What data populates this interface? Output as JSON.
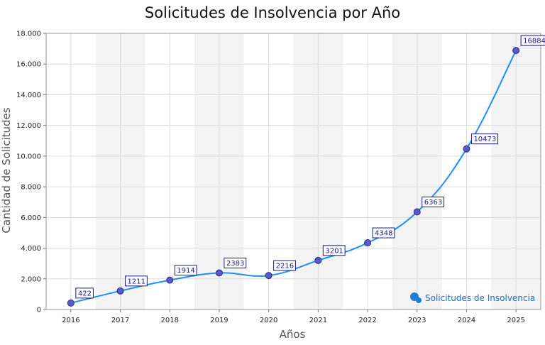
{
  "chart_data": {
    "type": "line",
    "title": "Solicitudes de Insolvencia por Año",
    "xlabel": "Años",
    "ylabel": "Cantidad de Solicitudes",
    "categories": [
      "2016",
      "2017",
      "2018",
      "2019",
      "2020",
      "2021",
      "2022",
      "2023",
      "2024",
      "2025"
    ],
    "series": [
      {
        "name": "Solicitudes de Insolvencia",
        "values": [
          422,
          1211,
          1914,
          2383,
          2216,
          3201,
          4348,
          6363,
          10473,
          16884
        ]
      }
    ],
    "ylim": [
      0,
      18000
    ],
    "yticks": [
      0,
      2000,
      4000,
      6000,
      8000,
      10000,
      12000,
      14000,
      16000,
      18000
    ],
    "ytick_labels": [
      "0",
      "2.000",
      "4.000",
      "6.000",
      "8.000",
      "10.000",
      "12.000",
      "14.000",
      "16.000",
      "18.000"
    ],
    "grid": true,
    "legend": "bottom-right",
    "colors": {
      "line": "#1e90ff",
      "marker": "#5a5acd",
      "band": "#f3f3f3",
      "label_border": "#1a1a8c"
    }
  }
}
